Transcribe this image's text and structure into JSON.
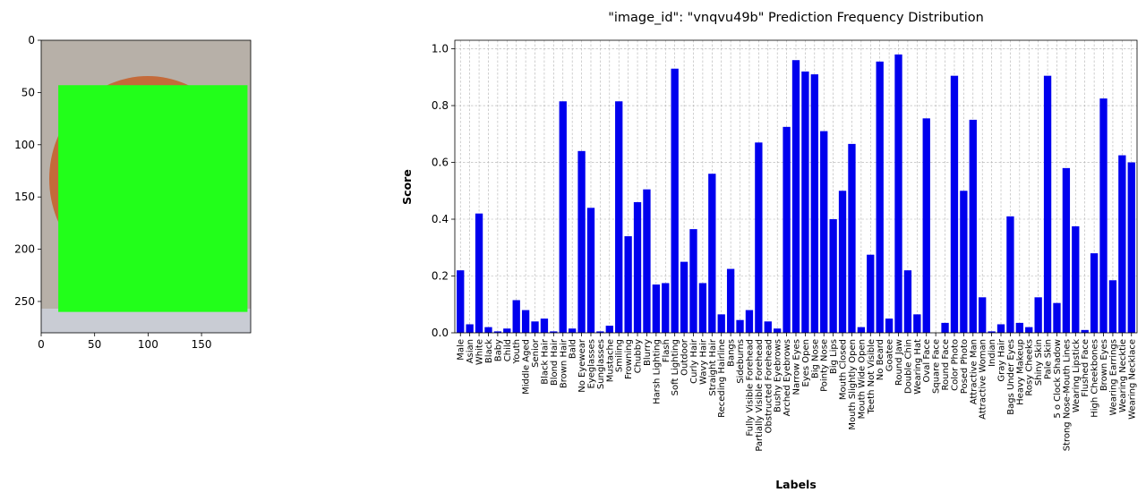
{
  "image_panel": {
    "xticks": [
      0,
      50,
      100,
      150
    ],
    "yticks": [
      0,
      50,
      100,
      150,
      200,
      250
    ],
    "xlim": [
      0,
      196
    ],
    "ylim": [
      280,
      0
    ],
    "mask_rect": {
      "x0": 16,
      "y0": 43,
      "x1": 193,
      "y1": 260
    },
    "colors": {
      "mask": "#22ff1a",
      "hair": "#c46a3a",
      "background": "#b7b0a8",
      "shirt": "#c9ccd4"
    }
  },
  "chart_data": {
    "type": "bar",
    "title": "\"image_id\": \"vnqvu49b\" Prediction Frequency Distribution",
    "xlabel": "Labels",
    "ylabel": "Score",
    "ylim": [
      0,
      1.03
    ],
    "yticks": [
      "0.0",
      "0.2",
      "0.4",
      "0.6",
      "0.8",
      "1.0"
    ],
    "grid": true,
    "bar_color": "#0000ee",
    "categories": [
      "Male",
      "Asian",
      "White",
      "Black",
      "Baby",
      "Child",
      "Youth",
      "Middle Aged",
      "Senior",
      "Black Hair",
      "Blond Hair",
      "Brown Hair",
      "Bald",
      "No Eyewear",
      "Eyeglasses",
      "Sunglasses",
      "Mustache",
      "Smiling",
      "Frowning",
      "Chubby",
      "Blurry",
      "Harsh Lighting",
      "Flash",
      "Soft Lighting",
      "Outdoor",
      "Curly Hair",
      "Wavy Hair",
      "Straight Hair",
      "Receding Hairline",
      "Bangs",
      "Sideburns",
      "Fully Visible Forehead",
      "Partially Visible Forehead",
      "Obstructed Forehead",
      "Bushy Eyebrows",
      "Arched Eyebrows",
      "Narrow Eyes",
      "Eyes Open",
      "Big Nose",
      "Pointy Nose",
      "Big Lips",
      "Mouth Closed",
      "Mouth Slightly Open",
      "Mouth Wide Open",
      "Teeth Not Visible",
      "No Beard",
      "Goatee",
      "Round Jaw",
      "Double Chin",
      "Wearing Hat",
      "Oval Face",
      "Square Face",
      "Round Face",
      "Color Photo",
      "Posed Photo",
      "Attractive Man",
      "Attractive Woman",
      "Indian",
      "Gray Hair",
      "Bags Under Eyes",
      "Heavy Makeup",
      "Rosy Cheeks",
      "Shiny Skin",
      "Pale Skin",
      "5 o Clock Shadow",
      "Strong Nose-Mouth Lines",
      "Wearing Lipstick",
      "Flushed Face",
      "High Cheekbones",
      "Brown Eyes",
      "Wearing Earrings",
      "Wearing Necktie",
      "Wearing Necklace"
    ],
    "values": [
      0.22,
      0.03,
      0.42,
      0.02,
      0.005,
      0.015,
      0.115,
      0.08,
      0.04,
      0.05,
      0.005,
      0.815,
      0.015,
      0.64,
      0.44,
      0.005,
      0.025,
      0.815,
      0.34,
      0.46,
      0.505,
      0.17,
      0.175,
      0.93,
      0.25,
      0.365,
      0.175,
      0.56,
      0.065,
      0.225,
      0.045,
      0.08,
      0.67,
      0.04,
      0.015,
      0.725,
      0.96,
      0.92,
      0.91,
      0.71,
      0.4,
      0.5,
      0.665,
      0.02,
      0.275,
      0.955,
      0.05,
      0.98,
      0.22,
      0.065,
      0.755,
      0.0,
      0.035,
      0.905,
      0.5,
      0.75,
      0.125,
      0.005,
      0.03,
      0.41,
      0.035,
      0.02,
      0.125,
      0.905,
      0.105,
      0.58,
      0.375,
      0.01,
      0.28,
      0.825,
      0.185,
      0.625,
      0.6
    ]
  }
}
